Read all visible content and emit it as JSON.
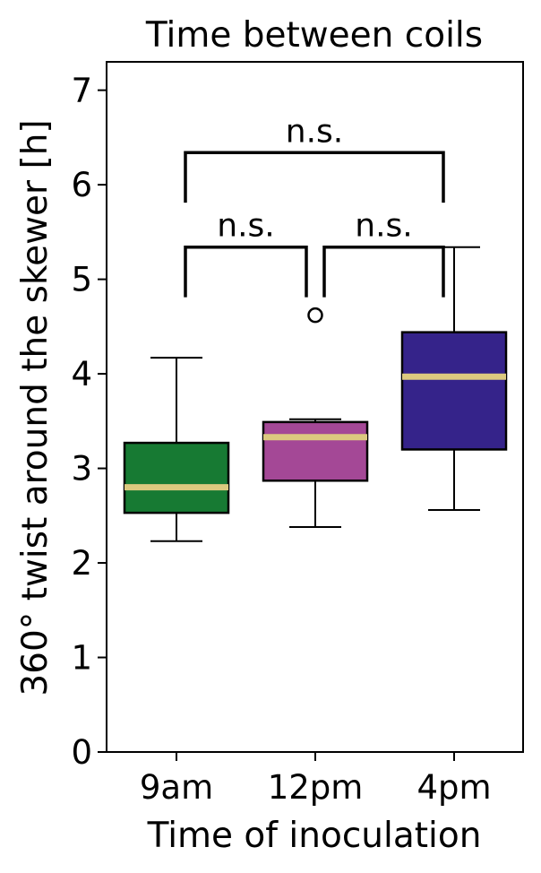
{
  "chart_data": {
    "type": "box",
    "title": "Time between coils",
    "xlabel": "Time of inoculation",
    "ylabel": "360° twist around the skewer [h]",
    "ylim": [
      0,
      7.3
    ],
    "yticks": [
      0,
      1,
      2,
      3,
      4,
      5,
      6,
      7
    ],
    "categories": [
      "9am",
      "12pm",
      "4pm"
    ],
    "colors": {
      "9am": "#177a33",
      "12pm": "#a44896",
      "4pm": "#35238a",
      "median": "#dcc97f"
    },
    "series": [
      {
        "category": "9am",
        "whisker_low": 2.23,
        "q1": 2.53,
        "median": 2.8,
        "q3": 3.27,
        "whisker_high": 4.17,
        "outliers": []
      },
      {
        "category": "12pm",
        "whisker_low": 2.38,
        "q1": 2.87,
        "median": 3.33,
        "q3": 3.49,
        "whisker_high": 3.52,
        "outliers": [
          4.62
        ]
      },
      {
        "category": "4pm",
        "whisker_low": 2.56,
        "q1": 3.2,
        "median": 3.97,
        "q3": 4.44,
        "whisker_high": 5.34,
        "outliers": []
      }
    ],
    "significance": [
      {
        "from": "9am",
        "to": "12pm",
        "label": "n.s.",
        "y": 5.34,
        "drop_to": 4.81
      },
      {
        "from": "12pm",
        "to": "4pm",
        "label": "n.s.",
        "y": 5.34,
        "drop_to": 4.81
      },
      {
        "from": "9am",
        "to": "4pm",
        "label": "n.s.",
        "y": 6.34,
        "drop_to": 5.81
      }
    ],
    "grid": false,
    "legend": "none"
  }
}
